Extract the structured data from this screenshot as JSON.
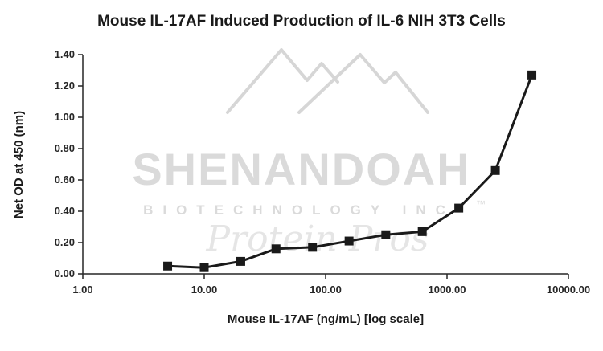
{
  "chart_data": {
    "type": "line",
    "title": "Mouse IL-17AF Induced Production of IL-6 NIH 3T3 Cells",
    "xlabel": "Mouse IL-17AF (ng/mL) [log scale]",
    "ylabel": "Net OD at 450 (nm)",
    "x_scale": "log",
    "xlim": [
      1,
      10000
    ],
    "ylim": [
      0,
      1.4
    ],
    "x_ticks": [
      "1.00",
      "10.00",
      "100.00",
      "1000.00",
      "10000.00"
    ],
    "x_tick_values": [
      1,
      10,
      100,
      1000,
      10000
    ],
    "y_ticks": [
      "0.00",
      "0.20",
      "0.40",
      "0.60",
      "0.80",
      "1.00",
      "1.20",
      "1.40"
    ],
    "y_tick_values": [
      0,
      0.2,
      0.4,
      0.6,
      0.8,
      1.0,
      1.2,
      1.4
    ],
    "grid": false,
    "legend": false,
    "series": [
      {
        "name": "Net OD at 450 (nm)",
        "x": [
          5,
          10,
          20,
          39,
          78,
          156,
          313,
          625,
          1250,
          2500,
          5000
        ],
        "y": [
          0.05,
          0.04,
          0.08,
          0.16,
          0.17,
          0.21,
          0.25,
          0.27,
          0.42,
          0.66,
          1.27
        ],
        "color": "#1a1a1a",
        "marker": "square",
        "line_width": 3,
        "marker_size": 11
      }
    ]
  },
  "watermark": {
    "line1": "SHENANDOAH",
    "line2": "BIOTECHNOLOGY INC",
    "tm": "™",
    "script": "Protein Pros",
    "color": "#d7d7d7"
  }
}
